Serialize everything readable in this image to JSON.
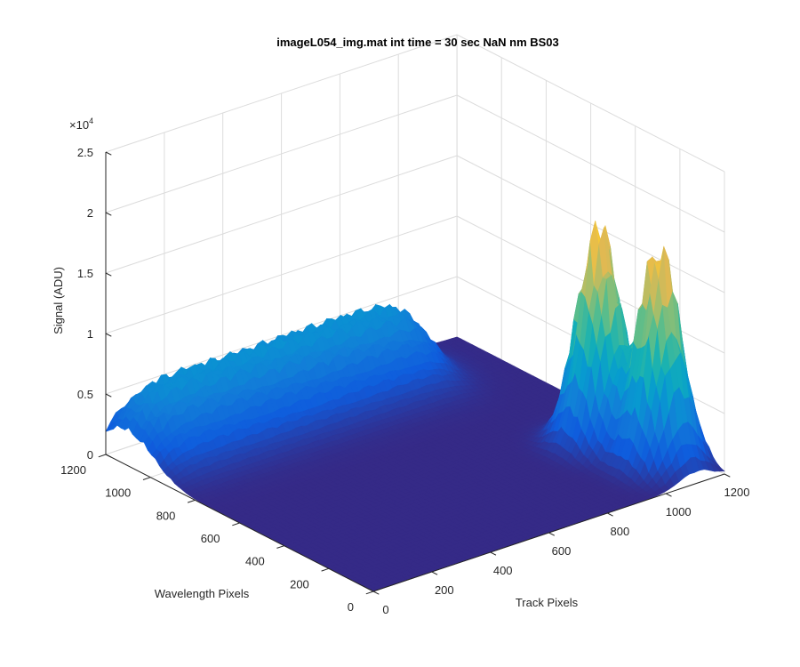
{
  "chart_data": {
    "type": "surface",
    "title": "imageL054_img.mat int time = 30 sec  NaN nm BS03",
    "xlabel": "Track Pixels",
    "ylabel": "Wavelength Pixels",
    "zlabel": "Signal (ADU)",
    "xlim": [
      0,
      1200
    ],
    "ylim": [
      0,
      1200
    ],
    "zlim": [
      0,
      25000
    ],
    "x_ticks": [
      "0",
      "200",
      "400",
      "600",
      "800",
      "1000",
      "1200"
    ],
    "y_ticks": [
      "0",
      "200",
      "400",
      "600",
      "800",
      "1000",
      "1200"
    ],
    "z_ticks": [
      "0",
      "0.5",
      "1",
      "1.5",
      "2",
      "2.5"
    ],
    "z_exponent_base": "×10",
    "z_exponent_power": "4",
    "grid": true,
    "colormap": "parula",
    "features": [
      {
        "name": "ridge",
        "x_range": [
          0,
          1000
        ],
        "y_center": 1100,
        "peak": 6500
      },
      {
        "name": "peak",
        "x_center": 1060,
        "y_center": 380,
        "peak": 20000
      },
      {
        "name": "peak",
        "x_center": 1100,
        "y_center": 160,
        "peak": 19500
      },
      {
        "name": "background",
        "value": 0
      }
    ]
  }
}
